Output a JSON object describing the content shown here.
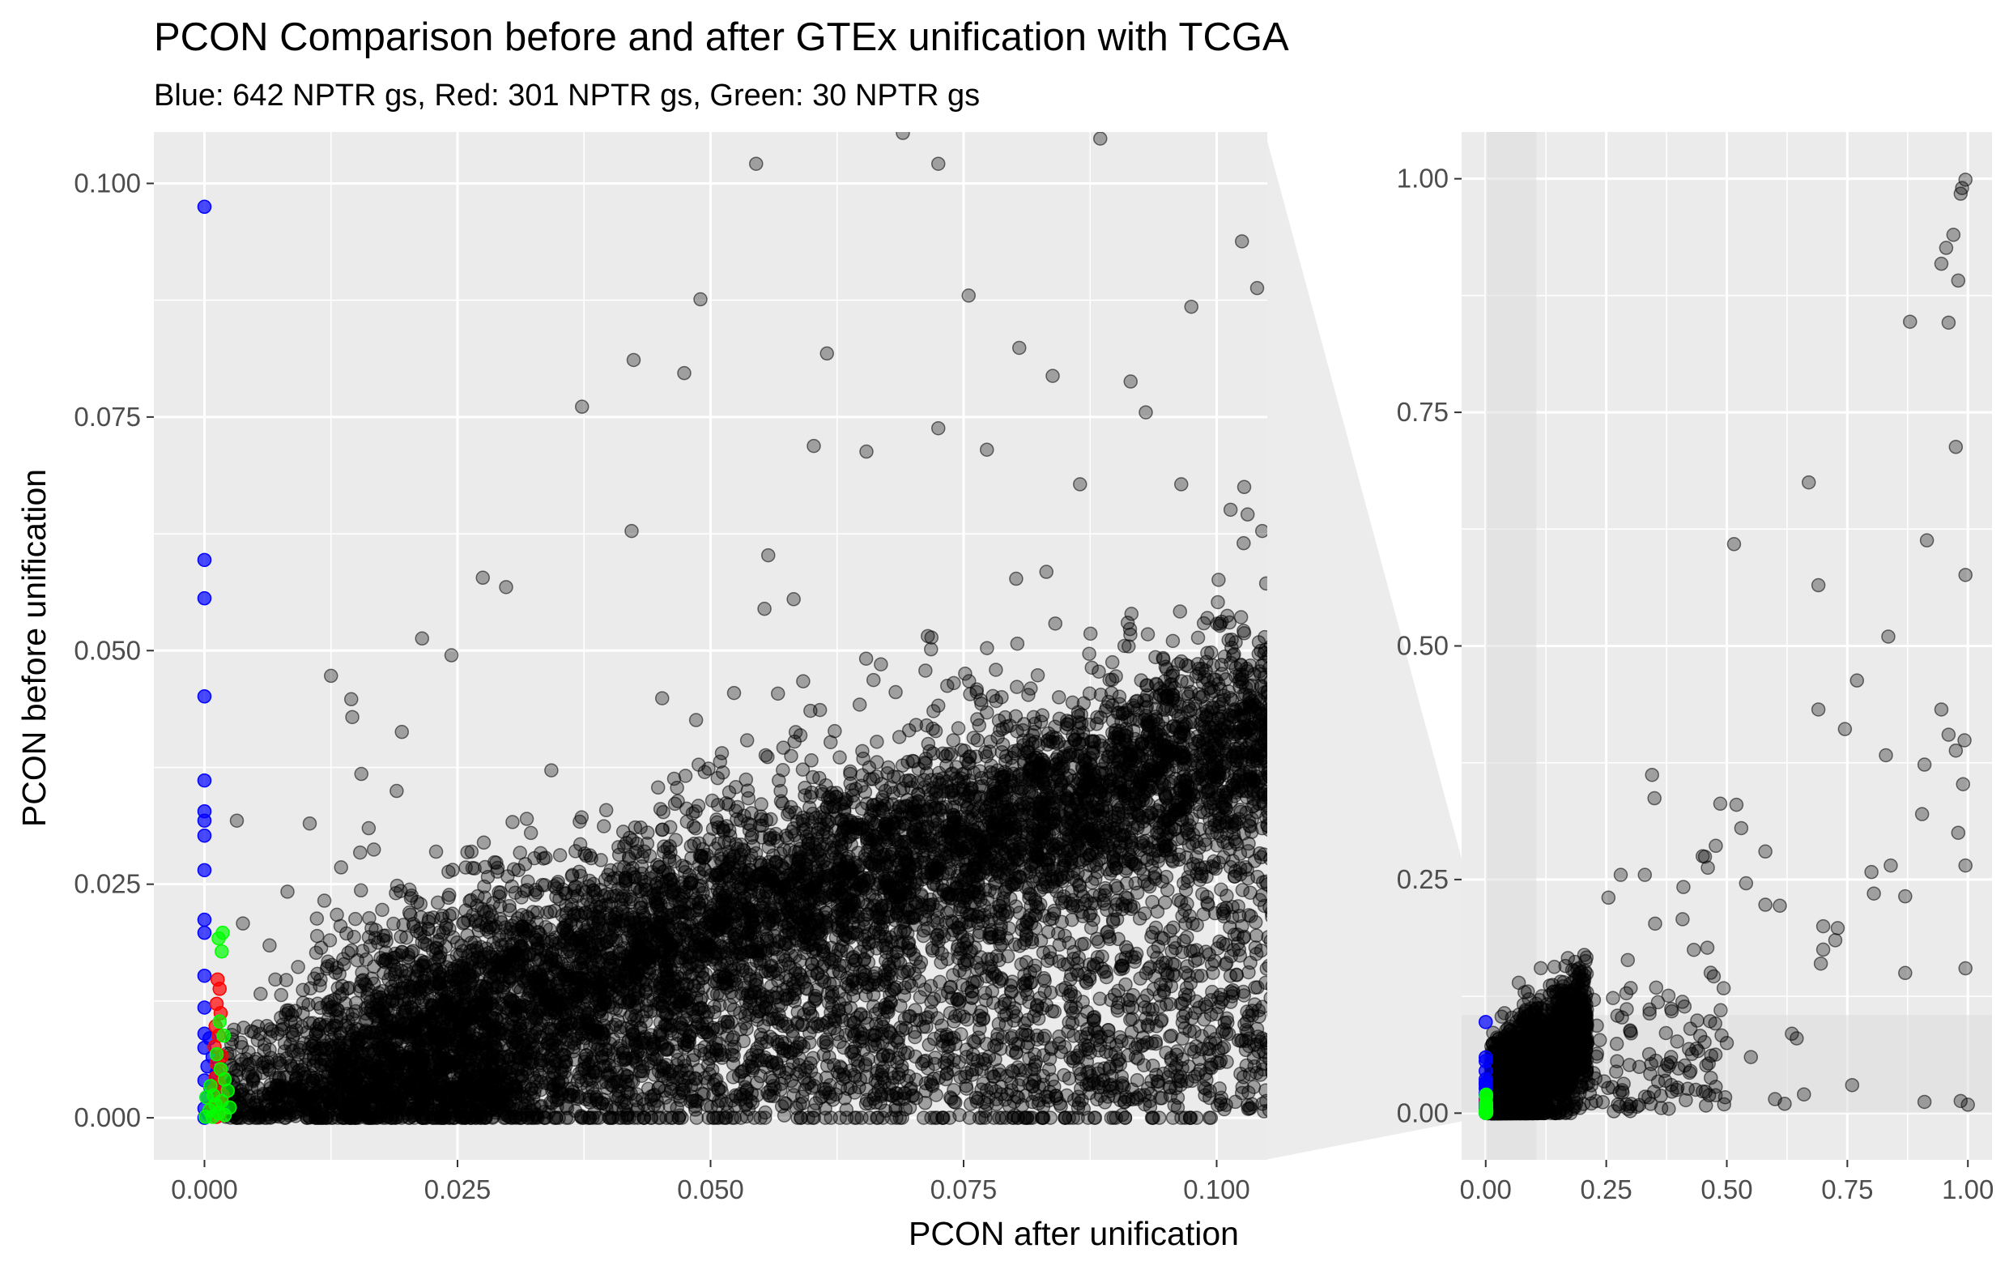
{
  "chart_data": {
    "type": "scatter",
    "title": "PCON Comparison before and after GTEx unification with TCGA",
    "subtitle": "Blue: 642 NPTR gs, Red: 301 NPTR gs, Green: 30 NPTR gs",
    "xlabel": "PCON after unification",
    "ylabel": "PCON before unification",
    "colors": {
      "background": "#ebebeb",
      "grid": "#ffffff",
      "points": "#000000",
      "blue": "#0000ff",
      "red": "#ff0000",
      "green": "#00ff00",
      "zoom_band": "#dcdcdc"
    },
    "panels": [
      {
        "name": "zoomed",
        "xlim": [
          -0.005,
          0.105
        ],
        "ylim": [
          -0.0045,
          0.1055
        ],
        "xticks": [
          0.0,
          0.025,
          0.05,
          0.075,
          0.1
        ],
        "xtick_labels": [
          "0.000",
          "0.025",
          "0.050",
          "0.075",
          "0.100"
        ],
        "yticks": [
          0.0,
          0.025,
          0.05,
          0.075,
          0.1
        ],
        "ytick_labels": [
          "0.000",
          "0.025",
          "0.050",
          "0.075",
          "0.100"
        ]
      },
      {
        "name": "full",
        "xlim": [
          -0.05,
          1.05
        ],
        "ylim": [
          -0.05,
          1.05
        ],
        "xticks": [
          0.0,
          0.25,
          0.5,
          0.75,
          1.0
        ],
        "xtick_labels": [
          "0.00",
          "0.25",
          "0.50",
          "0.75",
          "1.00"
        ],
        "yticks": [
          0.0,
          0.25,
          0.5,
          0.75,
          1.0
        ],
        "ytick_labels": [
          "0.00",
          "0.25",
          "0.50",
          "0.75",
          "1.00"
        ],
        "zoom_region": {
          "x": [
            0.0,
            0.105
          ],
          "y": [
            0.0,
            0.105
          ]
        }
      }
    ],
    "series": [
      {
        "color": "blue",
        "points": [
          [
            0.0,
            0.0975
          ],
          [
            0.0,
            0.0597
          ],
          [
            0.0,
            0.0556
          ],
          [
            0.0,
            0.0451
          ],
          [
            0.0,
            0.0361
          ],
          [
            0.0,
            0.0328
          ],
          [
            0.0,
            0.0318
          ],
          [
            0.0,
            0.0302
          ],
          [
            0.0,
            0.0265
          ],
          [
            0.0,
            0.0212
          ],
          [
            0.0,
            0.0198
          ],
          [
            0.0,
            0.0152
          ],
          [
            0.0,
            0.0118
          ],
          [
            0.0,
            0.009
          ],
          [
            0.0005,
            0.0085
          ],
          [
            0.0,
            0.0075
          ],
          [
            0.0008,
            0.0065
          ],
          [
            0.0003,
            0.0055
          ],
          [
            0.0012,
            0.0048
          ],
          [
            0.0,
            0.004
          ],
          [
            0.0006,
            0.0032
          ],
          [
            0.0015,
            0.0028
          ],
          [
            0.0002,
            0.0022
          ],
          [
            0.0009,
            0.0015
          ],
          [
            0.0,
            0.001
          ],
          [
            0.0018,
            0.0008
          ],
          [
            0.0004,
            0.0004
          ],
          [
            0.0,
            0.0
          ]
        ]
      },
      {
        "color": "red",
        "points": [
          [
            0.0013,
            0.0148
          ],
          [
            0.0015,
            0.0138
          ],
          [
            0.0012,
            0.0122
          ],
          [
            0.0016,
            0.0112
          ],
          [
            0.0011,
            0.0098
          ],
          [
            0.0014,
            0.0088
          ],
          [
            0.001,
            0.0076
          ],
          [
            0.0017,
            0.0066
          ],
          [
            0.0012,
            0.0058
          ],
          [
            0.0016,
            0.005
          ],
          [
            0.0011,
            0.0043
          ],
          [
            0.0015,
            0.0036
          ],
          [
            0.0009,
            0.003
          ],
          [
            0.0018,
            0.0024
          ],
          [
            0.0013,
            0.0018
          ],
          [
            0.0008,
            0.0012
          ],
          [
            0.0016,
            0.0006
          ],
          [
            0.0012,
            0.0001
          ]
        ]
      },
      {
        "color": "green",
        "points": [
          [
            0.0018,
            0.0198
          ],
          [
            0.0014,
            0.0192
          ],
          [
            0.0017,
            0.0178
          ],
          [
            0.0015,
            0.0103
          ],
          [
            0.0019,
            0.0088
          ],
          [
            0.0012,
            0.0068
          ],
          [
            0.0016,
            0.0052
          ],
          [
            0.002,
            0.0041
          ],
          [
            0.0006,
            0.0034
          ],
          [
            0.0023,
            0.0029
          ],
          [
            0.0009,
            0.0024
          ],
          [
            0.0002,
            0.0022
          ],
          [
            0.0017,
            0.0018
          ],
          [
            0.0011,
            0.0014
          ],
          [
            0.0025,
            0.0011
          ],
          [
            0.0005,
            0.0008
          ],
          [
            0.0014,
            0.0005
          ],
          [
            0.002,
            0.0003
          ],
          [
            0.0008,
            0.0001
          ],
          [
            0.0001,
            0.0001
          ]
        ]
      }
    ],
    "outliers": [
      [
        0.0215,
        0.0513
      ],
      [
        0.0244,
        0.0495
      ],
      [
        0.0275,
        0.0578
      ],
      [
        0.0298,
        0.0568
      ],
      [
        0.0373,
        0.0761
      ],
      [
        0.0424,
        0.0811
      ],
      [
        0.0474,
        0.0797
      ],
      [
        0.049,
        0.0876
      ],
      [
        0.0545,
        0.1021
      ],
      [
        0.0615,
        0.0818
      ],
      [
        0.069,
        0.1054
      ],
      [
        0.0725,
        0.1021
      ],
      [
        0.0755,
        0.088
      ],
      [
        0.0805,
        0.0824
      ],
      [
        0.0838,
        0.0794
      ],
      [
        0.0885,
        0.1048
      ],
      [
        0.0915,
        0.0788
      ],
      [
        0.0975,
        0.0868
      ],
      [
        0.1025,
        0.0938
      ],
      [
        0.104,
        0.0888
      ],
      [
        0.0125,
        0.0473
      ],
      [
        0.0145,
        0.0448
      ],
      [
        0.0155,
        0.0368
      ],
      [
        0.0195,
        0.0413
      ],
      [
        0.0602,
        0.0719
      ],
      [
        0.0654,
        0.0713
      ],
      [
        0.0725,
        0.0738
      ],
      [
        0.0773,
        0.0715
      ],
      [
        0.0865,
        0.0678
      ],
      [
        0.093,
        0.0755
      ],
      [
        0.0965,
        0.0678
      ],
      [
        0.0422,
        0.0628
      ],
      [
        0.0557,
        0.0602
      ],
      [
        0.1045,
        0.0628
      ],
      [
        0.0032,
        0.0318
      ],
      [
        0.0082,
        0.0242
      ],
      [
        0.0104,
        0.0315
      ],
      [
        0.0135,
        0.0268
      ],
      [
        0.0038,
        0.0208
      ],
      [
        0.007,
        0.0148
      ],
      [
        0.0125,
        0.0125
      ],
      [
        0.0985,
        0.0152
      ],
      [
        0.1045,
        0.0085
      ],
      [
        0.0958,
        0.0188
      ]
    ],
    "full_outliers": [
      [
        0.995,
        0.999
      ],
      [
        0.988,
        0.99
      ],
      [
        0.985,
        0.984
      ],
      [
        0.97,
        0.94
      ],
      [
        0.955,
        0.926
      ],
      [
        0.945,
        0.909
      ],
      [
        0.98,
        0.891
      ],
      [
        0.88,
        0.847
      ],
      [
        0.96,
        0.846
      ],
      [
        0.975,
        0.713
      ],
      [
        0.995,
        0.576
      ],
      [
        0.915,
        0.613
      ],
      [
        0.515,
        0.609
      ],
      [
        0.67,
        0.675
      ],
      [
        0.69,
        0.565
      ],
      [
        0.835,
        0.51
      ],
      [
        0.77,
        0.463
      ],
      [
        0.69,
        0.432
      ],
      [
        0.945,
        0.432
      ],
      [
        0.745,
        0.411
      ],
      [
        0.96,
        0.405
      ],
      [
        0.993,
        0.399
      ],
      [
        0.975,
        0.388
      ],
      [
        0.83,
        0.383
      ],
      [
        0.91,
        0.373
      ],
      [
        0.99,
        0.352
      ],
      [
        0.345,
        0.362
      ],
      [
        0.35,
        0.337
      ],
      [
        0.52,
        0.33
      ],
      [
        0.53,
        0.305
      ],
      [
        0.905,
        0.32
      ],
      [
        0.98,
        0.3
      ],
      [
        0.58,
        0.28
      ],
      [
        0.45,
        0.275
      ],
      [
        0.84,
        0.265
      ],
      [
        0.995,
        0.265
      ],
      [
        0.8,
        0.258
      ],
      [
        0.28,
        0.255
      ],
      [
        0.33,
        0.255
      ],
      [
        0.805,
        0.235
      ],
      [
        0.87,
        0.232
      ],
      [
        0.54,
        0.246
      ],
      [
        0.41,
        0.242
      ],
      [
        0.58,
        0.223
      ],
      [
        0.61,
        0.222
      ],
      [
        0.7,
        0.2
      ],
      [
        0.73,
        0.198
      ],
      [
        0.7,
        0.175
      ],
      [
        0.725,
        0.185
      ],
      [
        0.995,
        0.155
      ],
      [
        0.87,
        0.15
      ],
      [
        0.695,
        0.16
      ],
      [
        0.635,
        0.085
      ],
      [
        0.645,
        0.08
      ],
      [
        0.76,
        0.03
      ],
      [
        0.6,
        0.015
      ],
      [
        0.62,
        0.01
      ],
      [
        0.66,
        0.02
      ],
      [
        0.91,
        0.012
      ],
      [
        0.985,
        0.013
      ],
      [
        1.0,
        0.009
      ],
      [
        0.55,
        0.06
      ],
      [
        0.5,
        0.075
      ]
    ]
  }
}
